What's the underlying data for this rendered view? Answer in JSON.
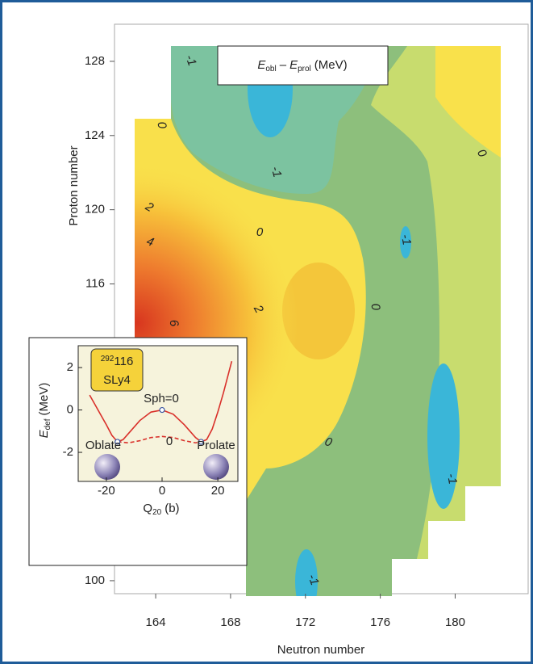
{
  "chart_data": [
    {
      "type": "contour",
      "title_parts": [
        "E",
        "obl",
        "–",
        "E",
        "prol",
        "(MeV)"
      ],
      "x_label": "Neutron number",
      "y_label": "Proton number",
      "xlim": [
        161.8,
        183.9
      ],
      "xticks": [
        164,
        168,
        172,
        176,
        180
      ],
      "ylim": [
        99.3,
        130
      ],
      "yticks": [
        100,
        116,
        120,
        124,
        128
      ],
      "contour_labels": [
        -1,
        0,
        -1,
        0,
        2,
        0,
        4,
        -1,
        0,
        2,
        6,
        0,
        -1,
        -1
      ]
    },
    {
      "type": "line",
      "x_label_parts": [
        "Q",
        "20",
        "(b)"
      ],
      "y_label_parts": [
        "E",
        "def",
        "(MeV)"
      ],
      "xlim": [
        -30.1,
        27.2
      ],
      "xticks": [
        -20,
        0,
        20
      ],
      "ylim": [
        -3.37,
        3.03
      ],
      "yticks": [
        -2,
        0,
        2
      ],
      "nucleus": [
        "292",
        "116"
      ],
      "model": "SLy4",
      "annotations": [
        "Sph=0",
        "0",
        "Oblate",
        "Prolate"
      ],
      "series": [
        {
          "color": "#d9302a",
          "style": "solid",
          "x": [
            -26,
            -23,
            -20,
            -18,
            -16,
            -14,
            -12,
            -8,
            -4,
            0,
            4,
            8,
            12,
            14,
            16,
            18,
            20,
            22,
            24,
            25
          ],
          "values": [
            0.7,
            0,
            -0.7,
            -1.2,
            -1.5,
            -1.4,
            -1.1,
            -0.5,
            -0.1,
            0,
            -0.2,
            -0.7,
            -1.3,
            -1.5,
            -1.4,
            -0.9,
            -0.1,
            0.8,
            1.8,
            2.3
          ]
        },
        {
          "color": "#d9302a",
          "style": "dashed",
          "x": [
            -16,
            -12,
            -8,
            -4,
            0,
            4,
            8,
            12,
            14
          ],
          "values": [
            -1.5,
            -1.55,
            -1.45,
            -1.3,
            -1.25,
            -1.3,
            -1.45,
            -1.55,
            -1.5
          ]
        }
      ],
      "points": {
        "color": "#3a55a0",
        "x": [
          -16,
          0,
          14
        ],
        "values": [
          -1.5,
          0,
          -1.5
        ]
      }
    }
  ]
}
